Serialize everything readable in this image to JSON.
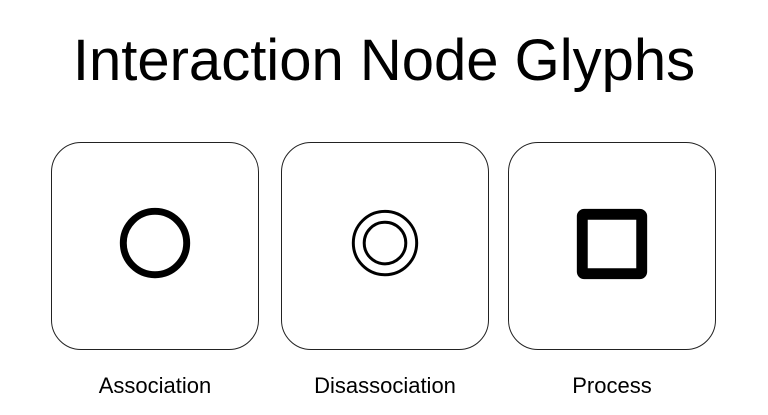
{
  "title": "Interaction Node Glyphs",
  "glyphs": [
    {
      "label": "Association",
      "icon": "single-circle-icon",
      "color": "#000000"
    },
    {
      "label": "Disassociation",
      "icon": "double-circle-icon",
      "color": "#000000"
    },
    {
      "label": "Process",
      "icon": "square-icon",
      "color": "#000000"
    }
  ]
}
